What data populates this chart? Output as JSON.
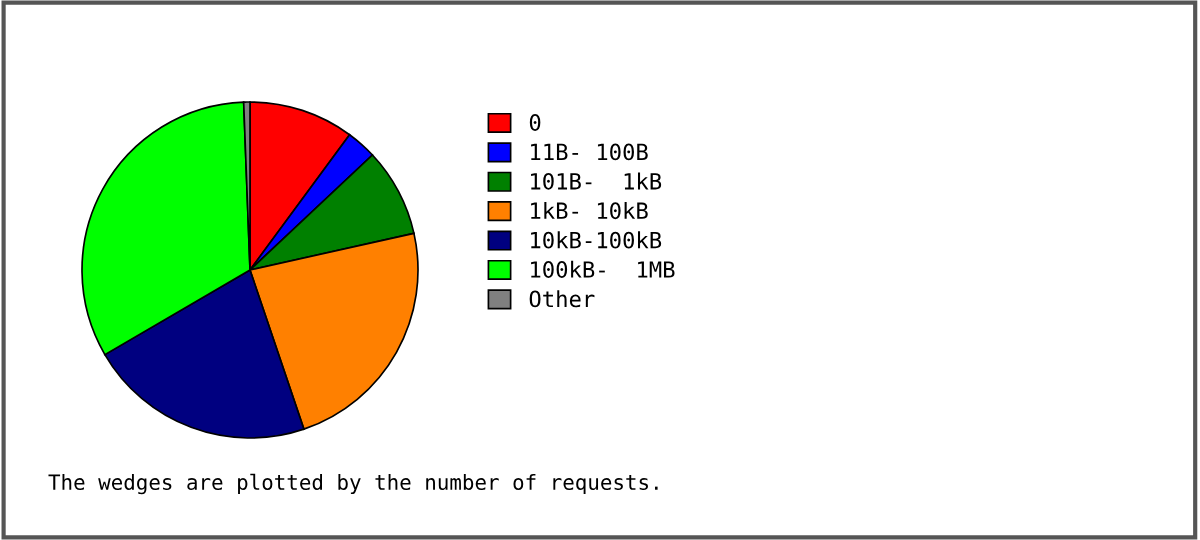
{
  "chart_data": {
    "type": "pie",
    "categories": [
      "0",
      "11B- 100B",
      "101B-  1kB",
      "1kB- 10kB",
      "10kB-100kB",
      "100kB-  1MB",
      "Other"
    ],
    "values": [
      10.1,
      2.9,
      8.5,
      23.3,
      21.8,
      32.8,
      0.6
    ],
    "colors": [
      "#ff0000",
      "#0000ff",
      "#008000",
      "#ff8000",
      "#000080",
      "#00ff00",
      "#808080"
    ],
    "legend": "right",
    "annotations": [
      "The wedges are plotted by the number of requests."
    ]
  }
}
